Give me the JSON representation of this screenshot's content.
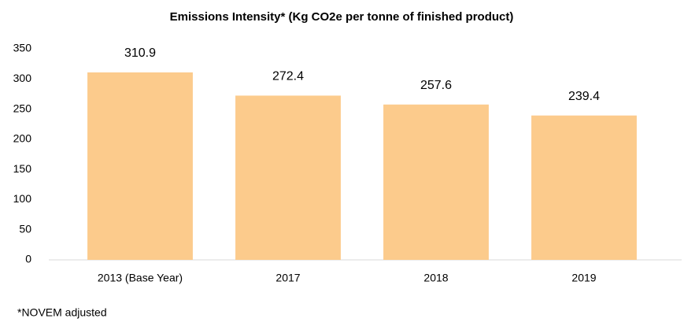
{
  "chart_data": {
    "type": "bar",
    "title": "Emissions Intensity* (Kg CO2e per tonne of finished product)",
    "categories": [
      "2013 (Base Year)",
      "2017",
      "2018",
      "2019"
    ],
    "values": [
      310.9,
      272.4,
      257.6,
      239.4
    ],
    "color": "#fccb8c",
    "ylim": [
      0,
      350
    ],
    "yticks": [
      0,
      50,
      100,
      150,
      200,
      250,
      300,
      350
    ],
    "grid": false,
    "note": "*NOVEM adjusted"
  }
}
